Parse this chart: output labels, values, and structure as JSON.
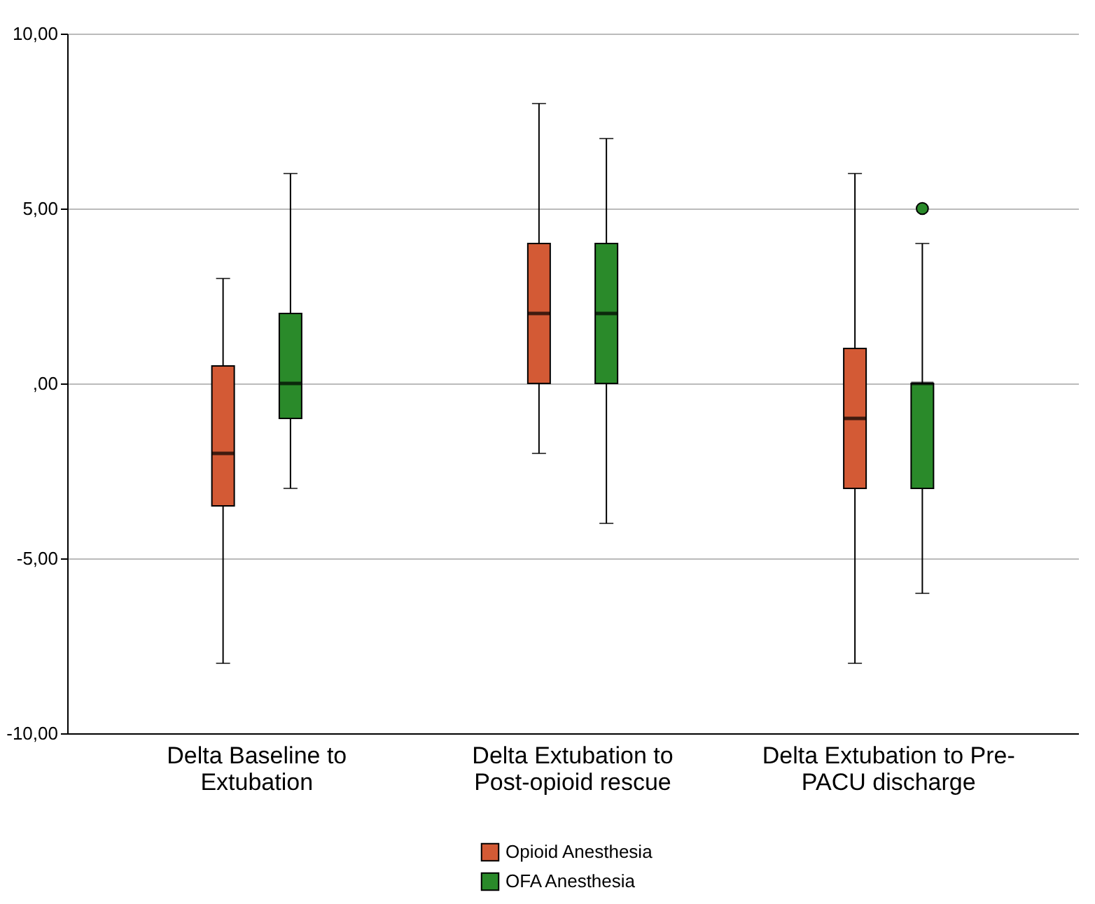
{
  "chart_data": {
    "type": "box",
    "categories": [
      "Delta Baseline to Extubation",
      "Delta Extubation to Post-opioid rescue",
      "Delta Extubation to Pre-PACU discharge"
    ],
    "series": [
      {
        "name": "Opioid Anesthesia",
        "color": "#d35a35",
        "boxes": [
          {
            "low": -8,
            "q1": -3.5,
            "median": -2,
            "q3": 0.5,
            "high": 3
          },
          {
            "low": -2,
            "q1": 0,
            "median": 2,
            "q3": 4,
            "high": 8
          },
          {
            "low": -8,
            "q1": -3,
            "median": -1,
            "q3": 1,
            "high": 6
          }
        ]
      },
      {
        "name": "OFA Anesthesia",
        "color": "#2a8a2a",
        "boxes": [
          {
            "low": -3,
            "q1": -1,
            "median": 0,
            "q3": 2,
            "high": 6
          },
          {
            "low": -4,
            "q1": 0,
            "median": 2,
            "q3": 4,
            "high": 7
          },
          {
            "low": -6,
            "q1": -3,
            "median": 0,
            "q3": 0,
            "high": 4,
            "outliers": [
              5
            ]
          }
        ]
      }
    ],
    "ylim": [
      -10,
      10
    ],
    "yticks": [
      {
        "value": -10,
        "label": "-10,00"
      },
      {
        "value": -5,
        "label": "-5,00"
      },
      {
        "value": 0,
        "label": ",00"
      },
      {
        "value": 5,
        "label": "5,00"
      },
      {
        "value": 10,
        "label": "10,00"
      }
    ],
    "grid": "y",
    "legend": "bottom"
  }
}
